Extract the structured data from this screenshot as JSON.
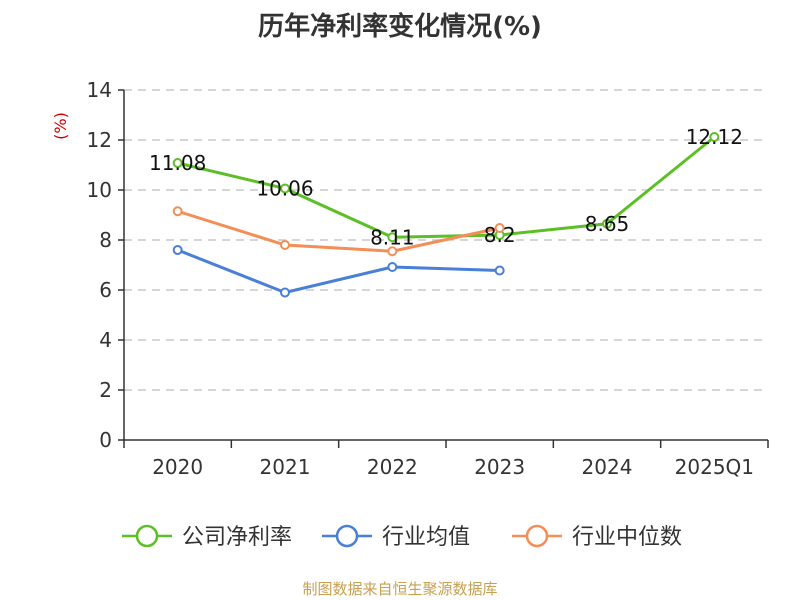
{
  "chart_data": {
    "type": "line",
    "title": "历年净利率变化情况(%)",
    "ylabel": "(%)",
    "xlabel": "",
    "categories": [
      "2020",
      "2021",
      "2022",
      "2023",
      "2024",
      "2025Q1"
    ],
    "ylim": [
      0,
      14
    ],
    "yticks": [
      0,
      2,
      4,
      6,
      8,
      10,
      12,
      14
    ],
    "grid": "horizontal dashed",
    "legend_position": "bottom",
    "series": [
      {
        "name": "公司净利率",
        "color": "#5cbf26",
        "values": [
          11.08,
          10.06,
          8.11,
          8.2,
          8.65,
          12.12
        ],
        "labels": [
          "11.08",
          "10.06",
          "8.11",
          "8.2",
          "8.65",
          "12.12"
        ]
      },
      {
        "name": "行业均值",
        "color": "#4a7fd6",
        "values": [
          7.6,
          5.9,
          6.92,
          6.78,
          null,
          null
        ]
      },
      {
        "name": "行业中位数",
        "color": "#f28e56",
        "values": [
          9.15,
          7.8,
          7.55,
          8.48,
          null,
          null
        ]
      }
    ],
    "unit_color": "#cc0000",
    "source": "制图数据来自恒生聚源数据库"
  }
}
